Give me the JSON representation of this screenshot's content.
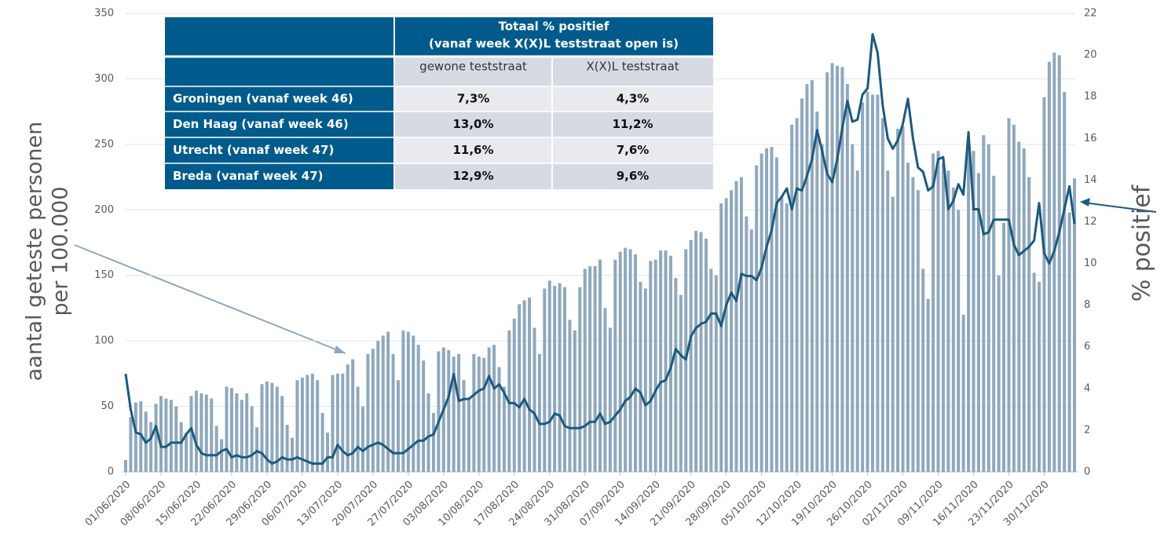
{
  "chart_data": {
    "type": "combo",
    "ylabel": [
      "aantal geteste personen",
      "per 100.000"
    ],
    "y2label": "% positief",
    "categories": [
      "01/06/2020",
      null,
      null,
      null,
      null,
      null,
      null,
      "08/06/2020",
      null,
      null,
      null,
      null,
      null,
      null,
      "15/06/2020",
      null,
      null,
      null,
      null,
      null,
      null,
      "22/06/2020",
      null,
      null,
      null,
      null,
      null,
      null,
      "29/06/2020",
      null,
      null,
      null,
      null,
      null,
      null,
      "06/07/2020",
      null,
      null,
      null,
      null,
      null,
      null,
      "13/07/2020",
      null,
      null,
      null,
      null,
      null,
      null,
      "20/07/2020",
      null,
      null,
      null,
      null,
      null,
      null,
      "27/07/2020",
      null,
      null,
      null,
      null,
      null,
      null,
      "03/08/2020",
      null,
      null,
      null,
      null,
      null,
      null,
      "10/08/2020",
      null,
      null,
      null,
      null,
      null,
      null,
      "17/08/2020",
      null,
      null,
      null,
      null,
      null,
      null,
      "24/08/2020",
      null,
      null,
      null,
      null,
      null,
      null,
      "31/08/2020",
      null,
      null,
      null,
      null,
      null,
      null,
      "07/09/2020",
      null,
      null,
      null,
      null,
      null,
      null,
      "14/09/2020",
      null,
      null,
      null,
      null,
      null,
      null,
      "21/09/2020",
      null,
      null,
      null,
      null,
      null,
      null,
      "28/09/2020",
      null,
      null,
      null,
      null,
      null,
      null,
      "05/10/2020",
      null,
      null,
      null,
      null,
      null,
      null,
      "12/10/2020",
      null,
      null,
      null,
      null,
      null,
      null,
      "19/10/2020",
      null,
      null,
      null,
      null,
      null,
      null,
      "26/10/2020",
      null,
      null,
      null,
      null,
      null,
      null,
      "02/11/2020",
      null,
      null,
      null,
      null,
      null,
      null,
      "09/11/2020",
      null,
      null,
      null,
      null,
      null,
      null,
      "16/11/2020",
      null,
      null,
      null,
      null,
      null,
      null,
      "23/11/2020",
      null,
      null,
      null,
      null,
      null,
      null,
      "30/11/2020",
      null,
      null,
      null,
      null,
      null,
      null
    ],
    "series": [
      {
        "type": "bar",
        "color": "#8fa8bd",
        "values": [
          9,
          42,
          53,
          54,
          46,
          38,
          52,
          58,
          56,
          55,
          50,
          38,
          30,
          58,
          62,
          60,
          59,
          56,
          35,
          25,
          65,
          64,
          60,
          55,
          60,
          50,
          34,
          67,
          69,
          68,
          65,
          58,
          36,
          26,
          70,
          72,
          74,
          75,
          70,
          45,
          30,
          74,
          75,
          75,
          82,
          86,
          65,
          50,
          90,
          94,
          100,
          104,
          107,
          90,
          70,
          108,
          107,
          104,
          97,
          85,
          60,
          45,
          92,
          95,
          93,
          88,
          90,
          70,
          55,
          90,
          88,
          87,
          95,
          97,
          80,
          65,
          108,
          117,
          128,
          131,
          133,
          110,
          90,
          140,
          146,
          142,
          144,
          141,
          116,
          108,
          141,
          155,
          157,
          157,
          162,
          125,
          110,
          162,
          168,
          171,
          170,
          166,
          145,
          140,
          161,
          162,
          169,
          169,
          165,
          148,
          135,
          170,
          177,
          184,
          183,
          178,
          155,
          150,
          205,
          209,
          215,
          222,
          225,
          195,
          185,
          234,
          243,
          247,
          248,
          240,
          210,
          205,
          265,
          270,
          285,
          296,
          299,
          275,
          250,
          305,
          312,
          310,
          309,
          296,
          250,
          230,
          282,
          290,
          288,
          288,
          270,
          230,
          210,
          262,
          264,
          236,
          225,
          215,
          155,
          132,
          243,
          245,
          236,
          230,
          217,
          200,
          120,
          250,
          245,
          228,
          257,
          250,
          226,
          150,
          190,
          270,
          265,
          252,
          247,
          225,
          152,
          145,
          286,
          313,
          320,
          318,
          290,
          198,
          224
        ]
      },
      {
        "type": "line",
        "axis": "y2",
        "color": "#1b5a7e",
        "values": [
          4.7,
          3.0,
          1.9,
          1.8,
          1.4,
          1.6,
          2.2,
          1.2,
          1.2,
          1.4,
          1.4,
          1.4,
          1.8,
          2.1,
          1.3,
          0.9,
          0.8,
          0.8,
          0.8,
          1.0,
          1.1,
          0.7,
          0.8,
          0.7,
          0.7,
          0.8,
          1.0,
          0.9,
          0.6,
          0.4,
          0.5,
          0.7,
          0.6,
          0.6,
          0.7,
          0.6,
          0.5,
          0.4,
          0.4,
          0.4,
          0.7,
          0.7,
          1.3,
          1.0,
          0.8,
          0.9,
          1.2,
          1.0,
          1.2,
          1.3,
          1.4,
          1.3,
          1.1,
          0.9,
          0.9,
          0.9,
          1.1,
          1.3,
          1.5,
          1.5,
          1.7,
          1.8,
          2.4,
          3.0,
          3.6,
          4.7,
          3.4,
          3.5,
          3.5,
          3.7,
          3.9,
          4.0,
          4.6,
          4.0,
          4.2,
          3.8,
          3.3,
          3.3,
          3.1,
          3.5,
          3.0,
          2.8,
          2.3,
          2.3,
          2.4,
          2.8,
          2.7,
          2.2,
          2.1,
          2.1,
          2.1,
          2.2,
          2.4,
          2.4,
          2.8,
          2.3,
          2.4,
          2.7,
          3.0,
          3.4,
          3.6,
          4.0,
          3.8,
          3.2,
          3.4,
          3.9,
          4.3,
          4.4,
          5.0,
          5.9,
          5.6,
          5.4,
          6.5,
          6.9,
          7.1,
          7.2,
          7.6,
          7.6,
          7.0,
          8.0,
          8.6,
          8.2,
          9.5,
          9.4,
          9.4,
          9.2,
          9.8,
          10.8,
          11.6,
          12.9,
          13.2,
          13.6,
          12.6,
          13.6,
          13.5,
          14.2,
          15.0,
          16.4,
          15.4,
          14.3,
          13.9,
          15.0,
          16.5,
          17.8,
          16.8,
          16.9,
          18.1,
          18.4,
          21.0,
          20.1,
          17.6,
          16.0,
          15.5,
          15.9,
          16.7,
          17.9,
          16.0,
          14.6,
          14.4,
          13.5,
          13.7,
          15.0,
          15.1,
          12.6,
          13.0,
          13.8,
          13.3,
          16.3,
          12.6,
          12.6,
          11.4,
          11.5,
          12.1,
          12.1,
          12.1,
          12.1,
          10.9,
          10.4,
          10.6,
          10.8,
          11.1,
          12.9,
          10.5,
          10.0,
          10.6,
          11.5,
          12.6,
          13.7,
          11.9
        ]
      }
    ],
    "ylim": [
      0,
      350
    ],
    "yticks": [
      0,
      50,
      100,
      150,
      200,
      250,
      300,
      350
    ],
    "y2lim": [
      0,
      22
    ],
    "y2ticks": [
      0,
      2,
      4,
      6,
      8,
      10,
      12,
      14,
      16,
      18,
      20,
      22
    ],
    "grid": true,
    "table": {
      "header": [
        "Totaal % positief",
        "(vanaf week X(X)L teststraat open is)"
      ],
      "columns": [
        "gewone teststraat",
        "X(X)L teststraat"
      ],
      "rows": [
        [
          "Groningen (vanaf week 46)",
          "7,3%",
          "4,3%"
        ],
        [
          "Den Haag (vanaf week 46)",
          "13,0%",
          "11,2%"
        ],
        [
          "Utrecht (vanaf week 47)",
          "11,6%",
          "7,6%"
        ],
        [
          "Breda (vanaf week 47)",
          "12,9%",
          "9,6%"
        ]
      ]
    }
  }
}
